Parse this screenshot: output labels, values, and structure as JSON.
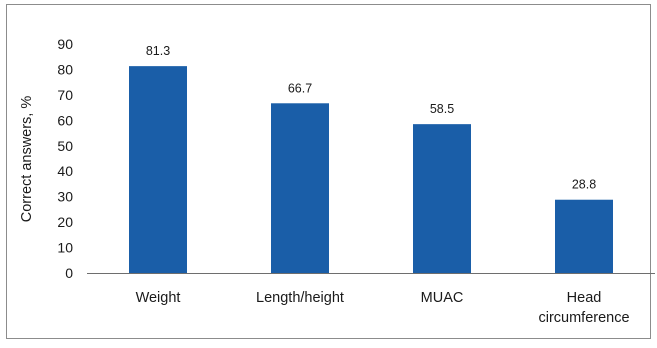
{
  "chart_data": {
    "type": "bar",
    "categories": [
      "Weight",
      "Length/height",
      "MUAC",
      "Head circumference"
    ],
    "category_label_lines": [
      [
        "Weight"
      ],
      [
        "Length/height"
      ],
      [
        "MUAC"
      ],
      [
        "Head",
        "circumference"
      ]
    ],
    "values": [
      81.3,
      66.7,
      58.5,
      28.8
    ],
    "data_labels": [
      "81.3",
      "66.7",
      "58.5",
      "28.8"
    ],
    "title": "",
    "xlabel": "",
    "ylabel": "Correct answers, %",
    "ylim": [
      0,
      90
    ],
    "yticks": [
      0,
      10,
      20,
      30,
      40,
      50,
      60,
      70,
      80,
      90
    ],
    "grid": false,
    "legend": "none",
    "bar_color": "#1a5ea8",
    "axis_color": "#6e6e6e"
  }
}
